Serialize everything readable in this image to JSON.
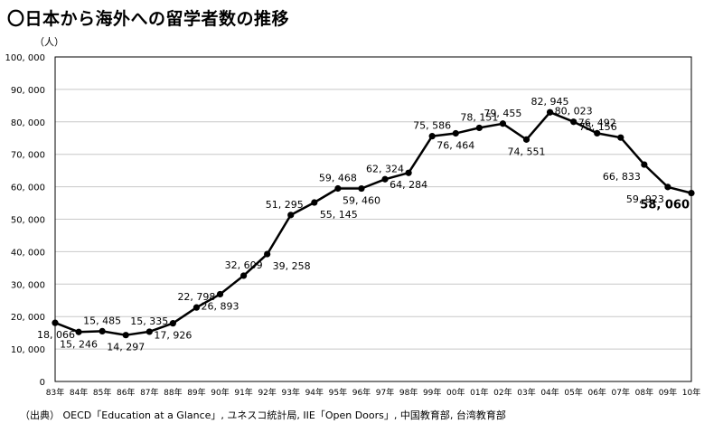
{
  "title": "〇日本から海外への留学者数の推移",
  "unit_label": "（人）",
  "source_note": "（出典） OECD「Education at a Glance」, ユネスコ統計局, IIE「Open Doors」, 中国教育部, 台湾教育部",
  "chart_data": {
    "type": "line",
    "title": "〇日本から海外への留学者数の推移",
    "ylabel": "（人）",
    "xlabel": "",
    "ylim": [
      0,
      100000
    ],
    "yticks": [
      0,
      10000,
      20000,
      30000,
      40000,
      50000,
      60000,
      70000,
      80000,
      90000,
      100000
    ],
    "ytick_labels": [
      "0",
      "10, 000",
      "20, 000",
      "30, 000",
      "40, 000",
      "50, 000",
      "60, 000",
      "70, 000",
      "80, 000",
      "90, 000",
      "100, 000"
    ],
    "categories": [
      "83年",
      "84年",
      "85年",
      "86年",
      "87年",
      "88年",
      "89年",
      "90年",
      "91年",
      "92年",
      "93年",
      "94年",
      "95年",
      "96年",
      "97年",
      "98年",
      "99年",
      "00年",
      "01年",
      "02年",
      "03年",
      "04年",
      "05年",
      "06年",
      "07年",
      "08年",
      "09年",
      "10年"
    ],
    "values": [
      18066,
      15246,
      15485,
      14297,
      15335,
      17926,
      22798,
      26893,
      32609,
      39258,
      51295,
      55145,
      59468,
      59460,
      62324,
      64284,
      75586,
      76464,
      78151,
      79455,
      74551,
      82945,
      80023,
      76492,
      75156,
      66833,
      59923,
      58060
    ],
    "data_labels": [
      "18, 066",
      "15, 246",
      "15, 485",
      "14, 297",
      "15, 335",
      "17, 926",
      "22, 798",
      "26, 893",
      "32, 609",
      "39, 258",
      "51, 295",
      "55, 145",
      "59, 468",
      "59, 460",
      "62, 324",
      "64, 284",
      "75, 586",
      "76, 464",
      "78, 151",
      "79, 455",
      "74, 551",
      "82, 945",
      "80, 023",
      "76, 492",
      "75, 156",
      "66, 833",
      "59, 923",
      "58, 060"
    ],
    "grid": true,
    "legend": "none",
    "line_color": "#000000",
    "grid_color": "#c8c8c8"
  }
}
